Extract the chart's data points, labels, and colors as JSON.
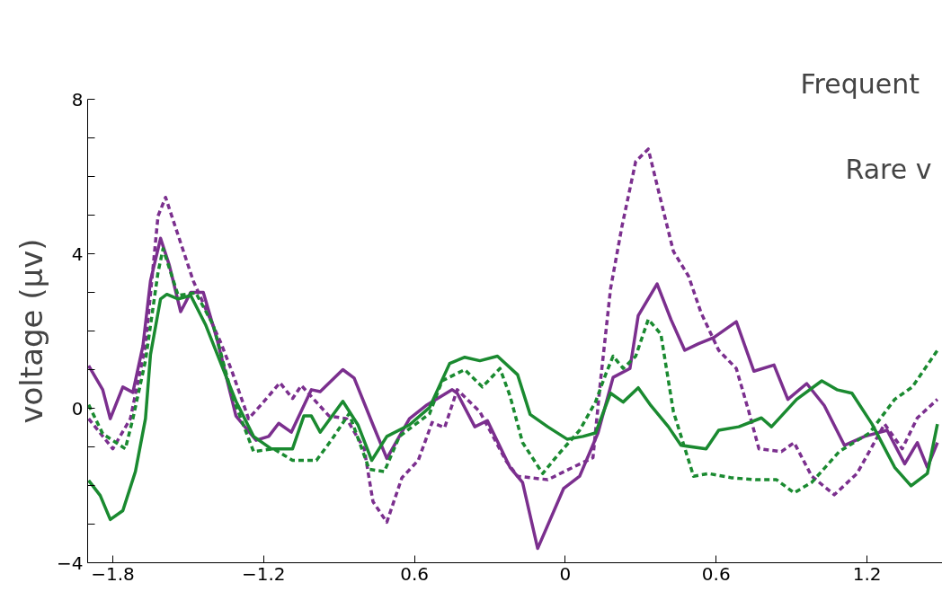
{
  "chart_data": {
    "type": "line",
    "ylabel": "voltage (μv)",
    "xlim": [
      -1.9,
      1.5
    ],
    "ylim": [
      -4,
      8
    ],
    "xticks": [
      -1.8,
      -1.2,
      {
        "value": -0.6,
        "label": "0.6"
      },
      0,
      0.6,
      1.2
    ],
    "yticks": [
      {
        "value": -4,
        "label": "−4"
      },
      {
        "value": -3,
        "label": null
      },
      {
        "value": -2,
        "label": null
      },
      {
        "value": -1,
        "label": null
      },
      0,
      {
        "value": 1,
        "label": null
      },
      {
        "value": 2,
        "label": null
      },
      {
        "value": 3,
        "label": null
      },
      4,
      {
        "value": 5,
        "label": null
      },
      {
        "value": 6,
        "label": null
      },
      {
        "value": 7,
        "label": null
      },
      8
    ],
    "grid": false,
    "marker": "none",
    "annotations": [
      "Frequent",
      "Rare v"
    ],
    "series": [
      {
        "color": "#7b2f8e",
        "line_style": "solid",
        "x": [
          -1.896,
          -1.84,
          -1.81,
          -1.76,
          -1.72,
          -1.68,
          -1.65,
          -1.61,
          -1.575,
          -1.53,
          -1.49,
          -1.44,
          -1.385,
          -1.31,
          -1.23,
          -1.18,
          -1.14,
          -1.09,
          -1.01,
          -0.975,
          -0.885,
          -0.84,
          -0.765,
          -0.71,
          -0.62,
          -0.55,
          -0.45,
          -0.43,
          -0.36,
          -0.31,
          -0.22,
          -0.17,
          -0.11,
          -0.007,
          0.057,
          0.13,
          0.19,
          0.257,
          0.29,
          0.365,
          0.42,
          0.475,
          0.53,
          0.59,
          0.68,
          0.75,
          0.83,
          0.885,
          0.96,
          1.03,
          1.11,
          1.19,
          1.28,
          1.35,
          1.4,
          1.44,
          1.48
        ],
        "values": [
          1.1,
          0.48,
          -0.27,
          0.55,
          0.41,
          1.62,
          3.3,
          4.4,
          3.7,
          2.5,
          3.0,
          3.0,
          1.78,
          -0.2,
          -0.83,
          -0.73,
          -0.39,
          -0.62,
          0.48,
          0.43,
          1.0,
          0.78,
          -0.43,
          -1.3,
          -0.27,
          0.09,
          0.48,
          0.39,
          -0.48,
          -0.32,
          -1.53,
          -1.92,
          -3.63,
          -2.08,
          -1.76,
          -0.64,
          0.8,
          1.03,
          2.4,
          3.22,
          2.3,
          1.5,
          1.67,
          1.83,
          2.24,
          0.96,
          1.12,
          0.23,
          0.64,
          0.07,
          -0.96,
          -0.73,
          -0.57,
          -1.44,
          -0.89,
          -1.53,
          -0.89
        ]
      },
      {
        "color": "#7b2f8e",
        "line_style": "dashed",
        "x": [
          -1.896,
          -1.8,
          -1.73,
          -1.67,
          -1.62,
          -1.59,
          -1.48,
          -1.37,
          -1.325,
          -1.26,
          -1.21,
          -1.135,
          -1.085,
          -1.05,
          -0.94,
          -0.87,
          -0.8,
          -0.765,
          -0.71,
          -0.65,
          -0.585,
          -0.53,
          -0.48,
          -0.43,
          -0.34,
          -0.235,
          -0.19,
          -0.07,
          0.03,
          0.11,
          0.14,
          0.18,
          0.225,
          0.28,
          0.33,
          0.39,
          0.43,
          0.49,
          0.54,
          0.61,
          0.68,
          0.73,
          0.77,
          0.86,
          0.91,
          0.98,
          1.07,
          1.16,
          1.27,
          1.34,
          1.4,
          1.48
        ],
        "values": [
          -0.27,
          -1.05,
          -0.27,
          1.62,
          4.98,
          5.46,
          3.3,
          1.69,
          0.94,
          -0.27,
          0.09,
          0.66,
          0.25,
          0.59,
          -0.2,
          -0.27,
          -1.05,
          -2.42,
          -2.95,
          -1.8,
          -1.35,
          -0.37,
          -0.5,
          0.48,
          -0.09,
          -1.37,
          -1.76,
          -1.85,
          -1.53,
          -1.28,
          0.71,
          3.1,
          4.7,
          6.39,
          6.71,
          5.11,
          4.06,
          3.42,
          2.47,
          1.5,
          1.03,
          -0.09,
          -1.05,
          -1.12,
          -0.89,
          -1.76,
          -2.24,
          -1.69,
          -0.41,
          -1.05,
          -0.25,
          0.23
        ]
      },
      {
        "color": "#1a8a30",
        "line_style": "solid",
        "x": [
          -1.896,
          -1.85,
          -1.81,
          -1.76,
          -1.71,
          -1.67,
          -1.65,
          -1.61,
          -1.585,
          -1.54,
          -1.49,
          -1.43,
          -1.37,
          -1.31,
          -1.24,
          -1.17,
          -1.085,
          -1.04,
          -1.01,
          -0.975,
          -0.885,
          -0.825,
          -0.77,
          -0.71,
          -0.62,
          -0.54,
          -0.46,
          -0.4,
          -0.34,
          -0.27,
          -0.19,
          -0.14,
          -0.07,
          0.007,
          0.07,
          0.12,
          0.18,
          0.23,
          0.29,
          0.34,
          0.41,
          0.46,
          0.56,
          0.61,
          0.69,
          0.78,
          0.82,
          0.92,
          1.02,
          1.08,
          1.14,
          1.22,
          1.31,
          1.375,
          1.44,
          1.48
        ],
        "values": [
          -1.87,
          -2.26,
          -2.88,
          -2.65,
          -1.64,
          -0.27,
          1.39,
          2.83,
          2.95,
          2.83,
          2.92,
          2.15,
          1.16,
          0.18,
          -0.73,
          -1.05,
          -1.05,
          -0.2,
          -0.2,
          -0.62,
          0.18,
          -0.43,
          -1.35,
          -0.73,
          -0.43,
          0.02,
          1.16,
          1.32,
          1.23,
          1.35,
          0.87,
          -0.16,
          -0.48,
          -0.8,
          -0.73,
          -0.64,
          0.39,
          0.16,
          0.53,
          0.07,
          -0.48,
          -0.96,
          -1.05,
          -0.57,
          -0.48,
          -0.25,
          -0.48,
          0.23,
          0.71,
          0.48,
          0.39,
          -0.41,
          -1.53,
          -2.01,
          -1.69,
          -0.41
        ]
      },
      {
        "color": "#1a8a30",
        "line_style": "dashed",
        "x": [
          -1.896,
          -1.84,
          -1.75,
          -1.72,
          -1.67,
          -1.62,
          -1.6,
          -1.54,
          -1.47,
          -1.4,
          -1.325,
          -1.24,
          -1.16,
          -1.085,
          -0.99,
          -0.93,
          -0.86,
          -0.78,
          -0.72,
          -0.66,
          -0.54,
          -0.49,
          -0.4,
          -0.33,
          -0.26,
          -0.22,
          -0.17,
          -0.09,
          -0.03,
          0.057,
          0.12,
          0.16,
          0.19,
          0.23,
          0.28,
          0.33,
          0.38,
          0.43,
          0.51,
          0.57,
          0.66,
          0.76,
          0.84,
          0.91,
          0.98,
          1.09,
          1.21,
          1.31,
          1.38,
          1.48
        ],
        "values": [
          0.09,
          -0.66,
          -1.05,
          -0.27,
          1.23,
          3.52,
          4.13,
          2.92,
          2.99,
          2.15,
          0.32,
          -1.12,
          -1.05,
          -1.35,
          -1.35,
          -0.82,
          -0.14,
          -1.58,
          -1.64,
          -0.73,
          -0.14,
          0.71,
          1.0,
          0.55,
          1.03,
          0.32,
          -0.89,
          -1.69,
          -1.21,
          -0.57,
          0.16,
          0.87,
          1.35,
          1.03,
          1.35,
          2.3,
          1.92,
          -0.09,
          -1.76,
          -1.69,
          -1.8,
          -1.85,
          -1.85,
          -2.19,
          -1.92,
          -1.12,
          -0.64,
          0.23,
          0.55,
          1.5
        ]
      }
    ]
  }
}
